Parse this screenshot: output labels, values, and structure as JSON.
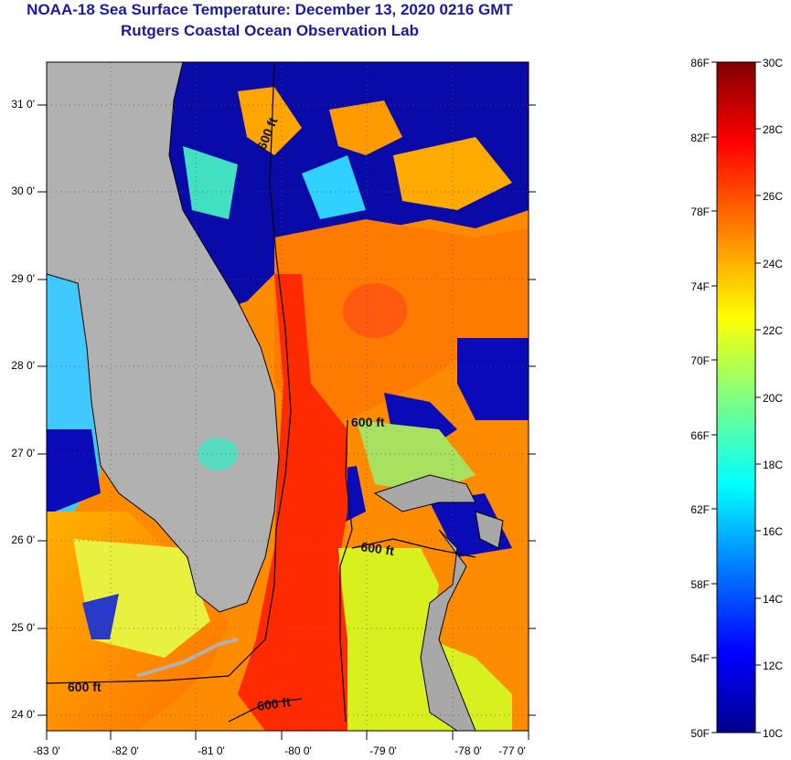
{
  "header": {
    "title": "NOAA-18 Sea Surface Temperature:  December 13, 2020 0216 GMT",
    "subtitle": "Rutgers Coastal Ocean Observation Lab"
  },
  "map": {
    "lon_ticks": [
      "-83 0'",
      "-82 0'",
      "-81 0'",
      "-80 0'",
      "-79 0'",
      "-78 0'",
      "-77 0'"
    ],
    "lat_ticks": [
      "31 0'",
      "30 0'",
      "29 0'",
      "28 0'",
      "27 0'",
      "26 0'",
      "25 0'",
      "24 0'"
    ],
    "contour_labels": [
      "600 ft",
      "600 ft",
      "600 ft",
      "600 ft",
      "600 ft"
    ]
  },
  "colorbar": {
    "fahrenheit": [
      "86F",
      "82F",
      "78F",
      "74F",
      "70F",
      "66F",
      "62F",
      "58F",
      "54F",
      "50F"
    ],
    "celsius": [
      "30C",
      "28C",
      "26C",
      "24C",
      "22C",
      "20C",
      "18C",
      "16C",
      "14C",
      "12C",
      "10C"
    ],
    "colors": [
      "#00008f",
      "#0000ff",
      "#0080ff",
      "#00ffff",
      "#80ff80",
      "#ffff00",
      "#ff8000",
      "#ff0000",
      "#800000"
    ]
  }
}
